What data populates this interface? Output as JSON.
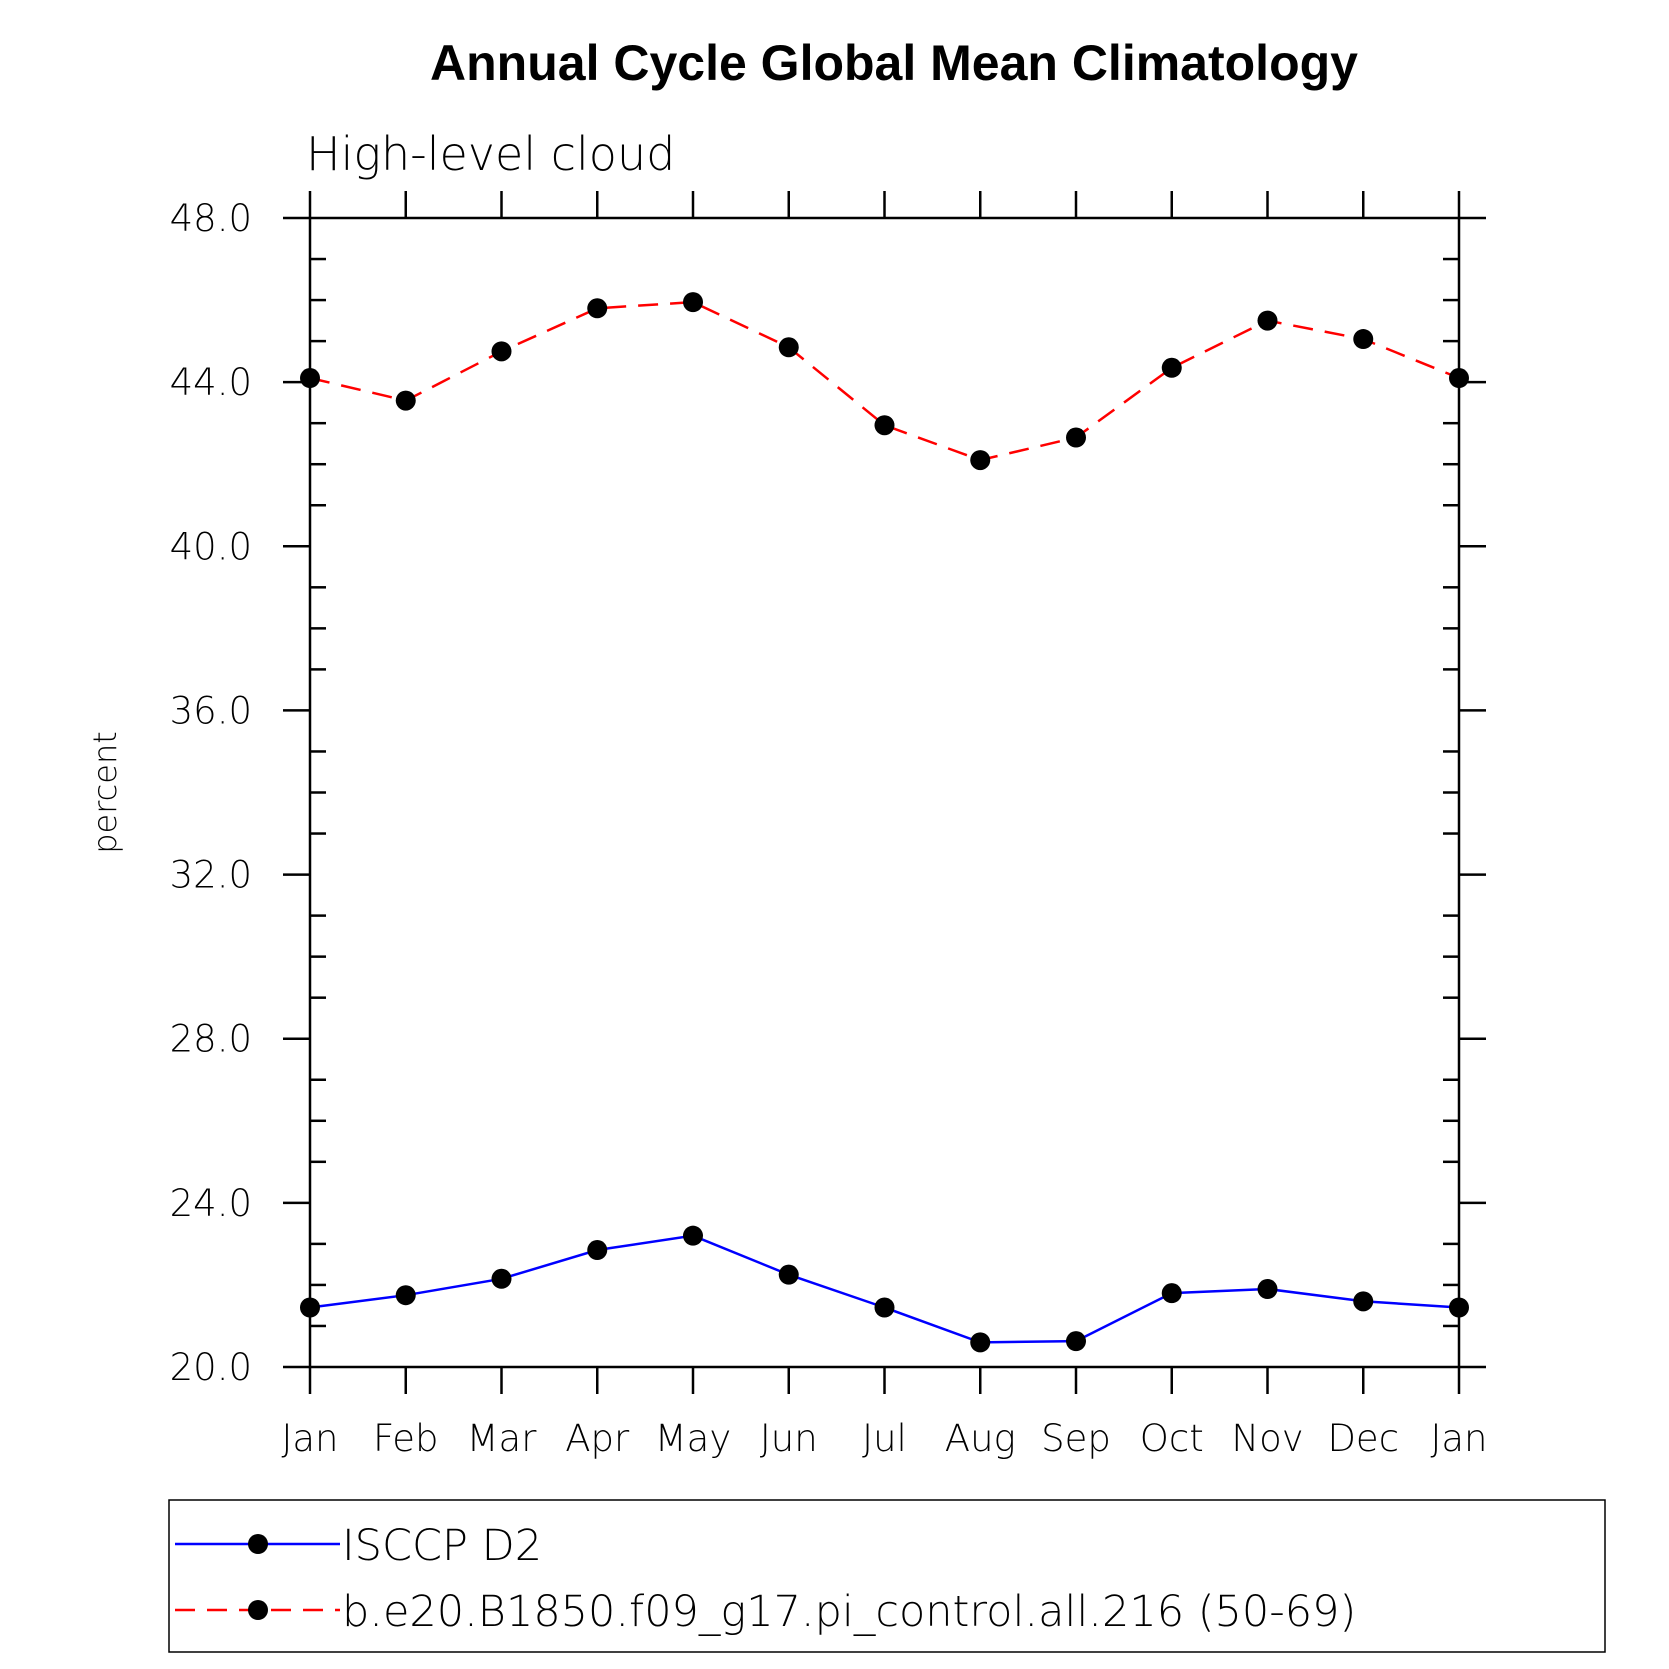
{
  "chart_data": {
    "type": "line",
    "title": "Annual Cycle Global Mean Climatology",
    "subtitle": "High-level cloud",
    "xlabel": "",
    "ylabel": "percent",
    "categories": [
      "Jan",
      "Feb",
      "Mar",
      "Apr",
      "May",
      "Jun",
      "Jul",
      "Aug",
      "Sep",
      "Oct",
      "Nov",
      "Dec",
      "Jan"
    ],
    "ylim": [
      20.0,
      48.0
    ],
    "yticks": [
      "20.0",
      "24.0",
      "28.0",
      "32.0",
      "36.0",
      "40.0",
      "44.0",
      "48.0"
    ],
    "grid": false,
    "legend_position": "bottom",
    "series": [
      {
        "name": "ISCCP D2",
        "color": "#0000ff",
        "line_style": "solid",
        "marker": "filled-circle",
        "values": [
          21.45,
          21.75,
          22.15,
          22.85,
          23.2,
          22.25,
          21.45,
          20.6,
          20.63,
          21.8,
          21.9,
          21.6,
          21.45
        ]
      },
      {
        "name": "b.e20.B1850.f09_g17.pi_control.all.216 (50-69)",
        "color": "#ff0000",
        "line_style": "dashed",
        "marker": "filled-circle",
        "values": [
          44.1,
          43.55,
          44.75,
          45.8,
          45.95,
          44.85,
          42.95,
          42.1,
          42.65,
          44.35,
          45.5,
          45.05,
          44.1
        ]
      }
    ]
  }
}
